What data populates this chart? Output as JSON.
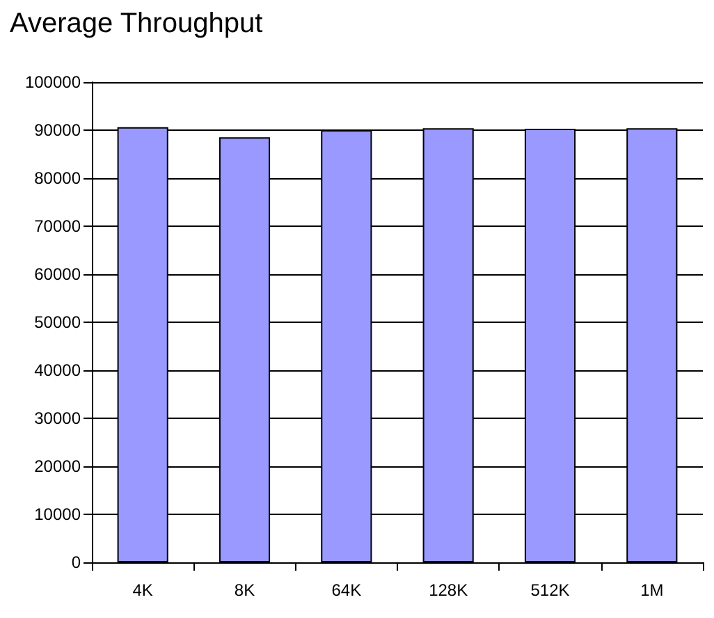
{
  "chart_data": {
    "type": "bar",
    "title": "Average Throughput",
    "categories": [
      "4K",
      "8K",
      "64K",
      "128K",
      "512K",
      "1M"
    ],
    "values": [
      90600,
      88500,
      90000,
      90400,
      90300,
      90400
    ],
    "color": "#9999ff",
    "ylim": [
      0,
      100000
    ],
    "yticks": [
      0,
      10000,
      20000,
      30000,
      40000,
      50000,
      60000,
      70000,
      80000,
      90000,
      100000
    ],
    "grid": "y"
  }
}
